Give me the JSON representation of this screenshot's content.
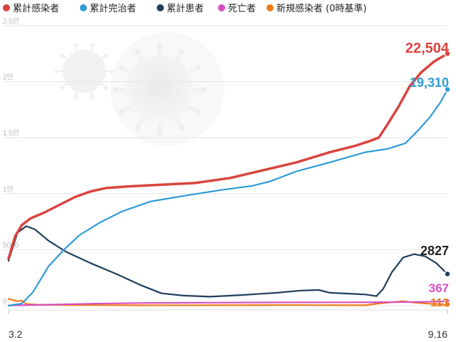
{
  "chart_data": {
    "type": "line",
    "title": "",
    "xlabel": "",
    "ylabel": "",
    "ylim": [
      0,
      25000
    ],
    "grid": true,
    "legend_position": "top",
    "x_range": [
      "2020-03-02",
      "2020-09-16"
    ],
    "x_tick_labels": [
      {
        "date": "2020-03-02",
        "label": "3.2"
      },
      {
        "date": "2020-09-16",
        "label": "9.16"
      }
    ],
    "y_tick_labels": [
      {
        "value": 0,
        "label": "0"
      },
      {
        "value": 5000,
        "label": "5000"
      },
      {
        "value": 10000,
        "label": "1만"
      },
      {
        "value": 15000,
        "label": "1.5만"
      },
      {
        "value": 20000,
        "label": "2만"
      },
      {
        "value": 25000,
        "label": "2.5만"
      }
    ],
    "series": [
      {
        "name": "累計感染者",
        "color": "#d9443f",
        "end_label": "22,504",
        "points": [
          [
            "2020-03-02",
            4200
          ],
          [
            "2020-03-05",
            6200
          ],
          [
            "2020-03-08",
            7200
          ],
          [
            "2020-03-12",
            7800
          ],
          [
            "2020-03-18",
            8300
          ],
          [
            "2020-03-25",
            9000
          ],
          [
            "2020-04-01",
            9700
          ],
          [
            "2020-04-08",
            10200
          ],
          [
            "2020-04-15",
            10500
          ],
          [
            "2020-04-25",
            10650
          ],
          [
            "2020-05-10",
            10800
          ],
          [
            "2020-05-25",
            10950
          ],
          [
            "2020-06-10",
            11400
          ],
          [
            "2020-06-25",
            12100
          ],
          [
            "2020-07-10",
            12800
          ],
          [
            "2020-07-25",
            13700
          ],
          [
            "2020-08-05",
            14250
          ],
          [
            "2020-08-12",
            14700
          ],
          [
            "2020-08-16",
            15000
          ],
          [
            "2020-08-20",
            16200
          ],
          [
            "2020-08-25",
            17800
          ],
          [
            "2020-08-30",
            19600
          ],
          [
            "2020-09-04",
            20800
          ],
          [
            "2020-09-10",
            21800
          ],
          [
            "2020-09-16",
            22504
          ]
        ]
      },
      {
        "name": "累計完治者",
        "color": "#2e9bd6",
        "end_label": "19,310",
        "points": [
          [
            "2020-03-02",
            0
          ],
          [
            "2020-03-08",
            200
          ],
          [
            "2020-03-13",
            1200
          ],
          [
            "2020-03-20",
            3500
          ],
          [
            "2020-03-27",
            5000
          ],
          [
            "2020-04-03",
            6300
          ],
          [
            "2020-04-12",
            7400
          ],
          [
            "2020-04-22",
            8400
          ],
          [
            "2020-05-05",
            9300
          ],
          [
            "2020-05-20",
            9800
          ],
          [
            "2020-06-05",
            10300
          ],
          [
            "2020-06-20",
            10700
          ],
          [
            "2020-06-28",
            11100
          ],
          [
            "2020-07-10",
            12000
          ],
          [
            "2020-07-25",
            12800
          ],
          [
            "2020-08-10",
            13700
          ],
          [
            "2020-08-20",
            14000
          ],
          [
            "2020-08-28",
            14500
          ],
          [
            "2020-09-03",
            15700
          ],
          [
            "2020-09-08",
            16800
          ],
          [
            "2020-09-13",
            18200
          ],
          [
            "2020-09-16",
            19310
          ]
        ]
      },
      {
        "name": "累計患者",
        "color": "#1f3f5c",
        "end_label": "2827",
        "points": [
          [
            "2020-03-02",
            4000
          ],
          [
            "2020-03-06",
            6500
          ],
          [
            "2020-03-10",
            7100
          ],
          [
            "2020-03-14",
            6800
          ],
          [
            "2020-03-20",
            5800
          ],
          [
            "2020-03-28",
            4800
          ],
          [
            "2020-04-08",
            3800
          ],
          [
            "2020-04-20",
            2800
          ],
          [
            "2020-05-01",
            1800
          ],
          [
            "2020-05-10",
            1100
          ],
          [
            "2020-05-20",
            900
          ],
          [
            "2020-06-01",
            800
          ],
          [
            "2020-06-15",
            950
          ],
          [
            "2020-07-01",
            1150
          ],
          [
            "2020-07-12",
            1350
          ],
          [
            "2020-07-20",
            1400
          ],
          [
            "2020-07-25",
            1150
          ],
          [
            "2020-08-10",
            1000
          ],
          [
            "2020-08-15",
            850
          ],
          [
            "2020-08-18",
            1500
          ],
          [
            "2020-08-22",
            3000
          ],
          [
            "2020-08-27",
            4300
          ],
          [
            "2020-09-01",
            4600
          ],
          [
            "2020-09-06",
            4400
          ],
          [
            "2020-09-11",
            3800
          ],
          [
            "2020-09-16",
            2827
          ]
        ]
      },
      {
        "name": "死亡者",
        "color": "#d64fc2",
        "end_label": "367",
        "points": [
          [
            "2020-03-02",
            25
          ],
          [
            "2020-03-20",
            90
          ],
          [
            "2020-04-10",
            180
          ],
          [
            "2020-05-01",
            240
          ],
          [
            "2020-06-01",
            270
          ],
          [
            "2020-07-01",
            285
          ],
          [
            "2020-08-01",
            300
          ],
          [
            "2020-08-20",
            310
          ],
          [
            "2020-09-01",
            330
          ],
          [
            "2020-09-16",
            367
          ]
        ]
      },
      {
        "name": "新規感染者 (0時基準)",
        "color": "#f07a17",
        "end_label": "113",
        "points": [
          [
            "2020-03-02",
            600
          ],
          [
            "2020-03-04",
            500
          ],
          [
            "2020-03-06",
            400
          ],
          [
            "2020-03-08",
            450
          ],
          [
            "2020-03-10",
            150
          ],
          [
            "2020-03-15",
            90
          ],
          [
            "2020-04-01",
            60
          ],
          [
            "2020-05-01",
            30
          ],
          [
            "2020-06-01",
            40
          ],
          [
            "2020-07-01",
            50
          ],
          [
            "2020-08-10",
            40
          ],
          [
            "2020-08-16",
            200
          ],
          [
            "2020-08-27",
            400
          ],
          [
            "2020-09-01",
            280
          ],
          [
            "2020-09-08",
            170
          ],
          [
            "2020-09-16",
            113
          ]
        ]
      }
    ]
  }
}
